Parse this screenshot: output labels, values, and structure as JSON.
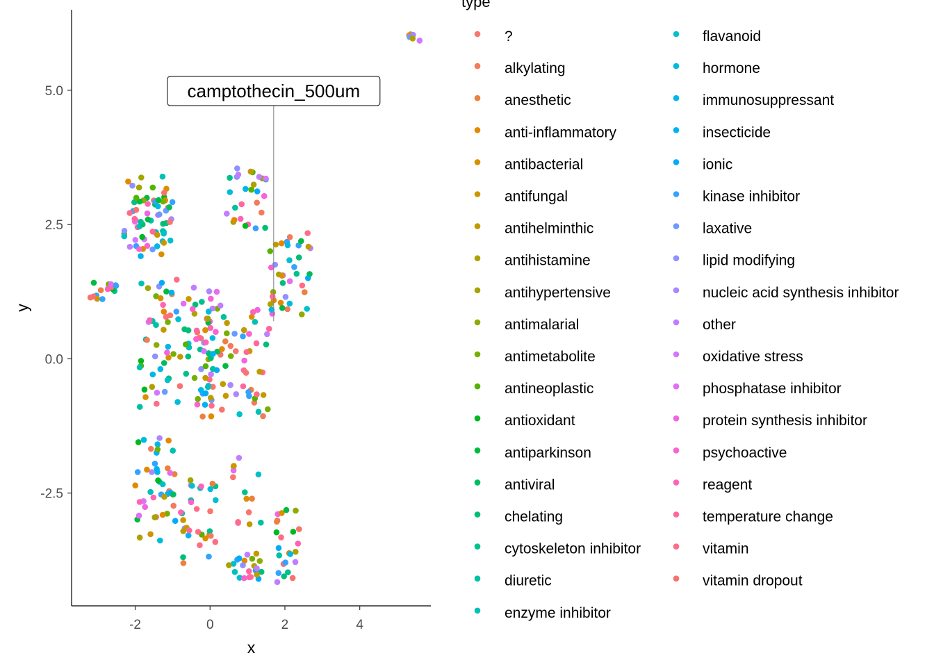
{
  "chart_data": {
    "type": "scatter",
    "xlabel": "x",
    "ylabel": "y",
    "xlim": [
      -3.7,
      5.9
    ],
    "ylim": [
      -4.6,
      6.5
    ],
    "x_ticks": [
      "-2",
      "0",
      "2",
      "4"
    ],
    "x_tick_values": [
      -2,
      0,
      2,
      4
    ],
    "y_ticks": [
      "-2.5",
      "0.0",
      "2.5",
      "5.0"
    ],
    "y_tick_values": [
      -2.5,
      0,
      2.5,
      5
    ],
    "grid": false,
    "legend": {
      "title": "type",
      "placement": "right",
      "columns": 2,
      "entries": [
        {
          "label": "?",
          "color": "#F8766D"
        },
        {
          "label": "alkylating",
          "color": "#F47A5B"
        },
        {
          "label": "anesthetic",
          "color": "#EE7F3F"
        },
        {
          "label": "anti-inflammatory",
          "color": "#E38900"
        },
        {
          "label": "antibacterial",
          "color": "#D89000"
        },
        {
          "label": "antifungal",
          "color": "#CC9600"
        },
        {
          "label": "antihelminthic",
          "color": "#BF9B00"
        },
        {
          "label": "antihistamine",
          "color": "#B2A000"
        },
        {
          "label": "antihypertensive",
          "color": "#A3A500"
        },
        {
          "label": "antimalarial",
          "color": "#8FAA00"
        },
        {
          "label": "antimetabolite",
          "color": "#76AF00"
        },
        {
          "label": "antineoplastic",
          "color": "#53B400"
        },
        {
          "label": "antioxidant",
          "color": "#00B81F"
        },
        {
          "label": "antiparkinson",
          "color": "#00BA42"
        },
        {
          "label": "antiviral",
          "color": "#00BC5F"
        },
        {
          "label": "chelating",
          "color": "#00BE78"
        },
        {
          "label": "cytoskeleton inhibitor",
          "color": "#00C08E"
        },
        {
          "label": "diuretic",
          "color": "#00C0A3"
        },
        {
          "label": "enzyme inhibitor",
          "color": "#00C1B6"
        },
        {
          "label": "flavanoid",
          "color": "#00C0C9"
        },
        {
          "label": "hormone",
          "color": "#00BCDA"
        },
        {
          "label": "immunosuppressant",
          "color": "#00B8E5"
        },
        {
          "label": "insecticide",
          "color": "#00B3F0"
        },
        {
          "label": "ionic",
          "color": "#00ACF9"
        },
        {
          "label": "kinase inhibitor",
          "color": "#35A2FF"
        },
        {
          "label": "laxative",
          "color": "#6B9AFF"
        },
        {
          "label": "lipid modifying",
          "color": "#8F91FF"
        },
        {
          "label": "nucleic acid synthesis inhibitor",
          "color": "#AB87FF"
        },
        {
          "label": "other",
          "color": "#C27DFF"
        },
        {
          "label": "oxidative stress",
          "color": "#D576FF"
        },
        {
          "label": "phosphatase inhibitor",
          "color": "#E56CF3"
        },
        {
          "label": "protein synthesis inhibitor",
          "color": "#F164E2"
        },
        {
          "label": "psychoactive",
          "color": "#FA62D3"
        },
        {
          "label": "reagent",
          "color": "#FF63B6"
        },
        {
          "label": "temperature change",
          "color": "#FF689C"
        },
        {
          "label": "vitamin",
          "color": "#FF6C87"
        },
        {
          "label": "vitamin dropout",
          "color": "#F7736B"
        }
      ]
    },
    "annotation": {
      "text": "camptothecin_500um",
      "x": 1.7,
      "y": 5.0,
      "point_x": 1.7,
      "point_y": 0.7
    },
    "clusters": [
      {
        "x": [
          -2.3,
          -1.0
        ],
        "y": [
          1.9,
          3.4
        ],
        "n": 70
      },
      {
        "x": [
          0.4,
          1.5
        ],
        "y": [
          2.4,
          3.6
        ],
        "n": 28
      },
      {
        "x": [
          -3.2,
          -2.5
        ],
        "y": [
          1.1,
          1.5
        ],
        "n": 16
      },
      {
        "x": [
          1.6,
          2.7
        ],
        "y": [
          0.8,
          2.4
        ],
        "n": 38
      },
      {
        "x": [
          -1.9,
          0.2
        ],
        "y": [
          -0.9,
          1.5
        ],
        "n": 95
      },
      {
        "x": [
          -0.2,
          1.7
        ],
        "y": [
          -1.1,
          1.0
        ],
        "n": 65
      },
      {
        "x": [
          -2.0,
          -0.9
        ],
        "y": [
          -3.4,
          -1.4
        ],
        "n": 45
      },
      {
        "x": [
          -0.8,
          0.2
        ],
        "y": [
          -3.9,
          -2.2
        ],
        "n": 32
      },
      {
        "x": [
          0.5,
          1.4
        ],
        "y": [
          -4.1,
          -3.6
        ],
        "n": 22
      },
      {
        "x": [
          0.6,
          1.4
        ],
        "y": [
          -3.1,
          -1.7
        ],
        "n": 14
      },
      {
        "x": [
          1.7,
          2.4
        ],
        "y": [
          -4.2,
          -2.8
        ],
        "n": 24
      },
      {
        "x": [
          5.3,
          5.6
        ],
        "y": [
          5.9,
          6.05
        ],
        "n": 6
      }
    ]
  }
}
